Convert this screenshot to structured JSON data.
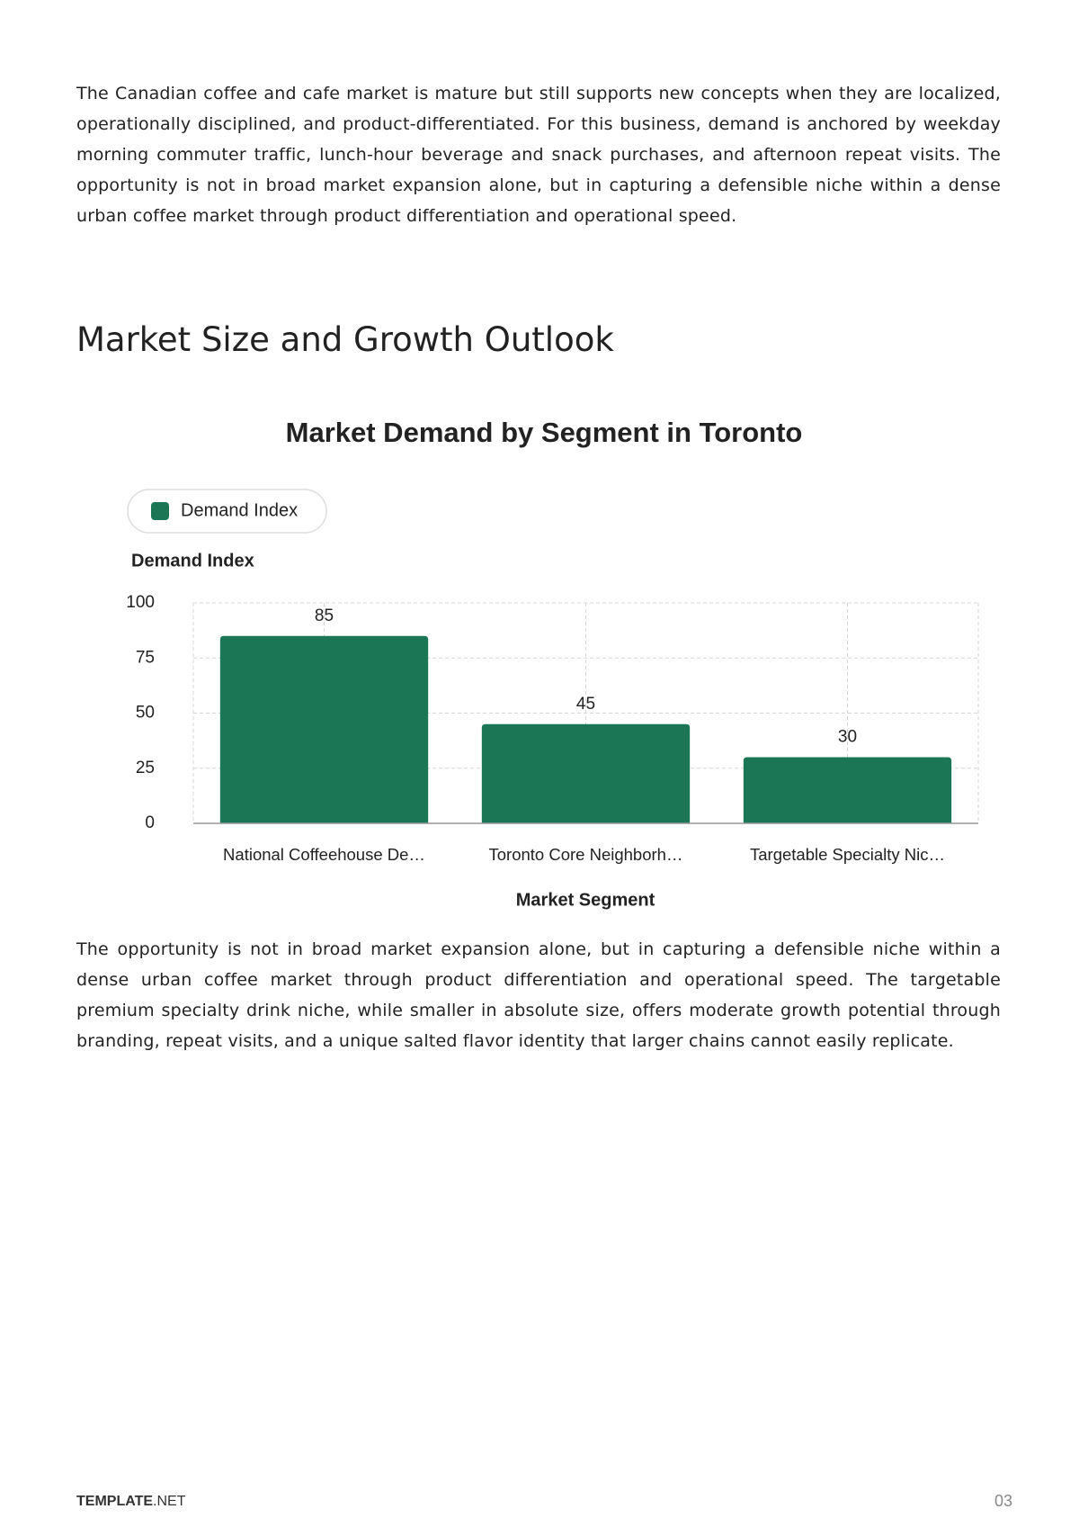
{
  "paragraphs": [
    "The Canadian coffee and cafe market is mature but still supports new concepts when they are localized, operationally disciplined, and product-differentiated. For this business, demand is anchored by weekday morning commuter traffic, lunch-hour beverage and snack purchases, and afternoon repeat visits. The opportunity is not in broad market expansion alone, but in capturing a defensible niche within a dense urban coffee market through product differentiation and operational speed.",
    "The opportunity is not in broad market expansion alone, but in capturing a defensible niche within a dense urban coffee market through product differentiation and operational speed. The targetable premium specialty drink niche, while smaller in absolute size, offers moderate growth potential through branding, repeat visits, and a unique salted flavor identity that larger chains cannot easily replicate."
  ],
  "heading": "Market Size and Growth Outlook",
  "chart_data": {
    "type": "bar",
    "title": "Market Demand by Segment in Toronto",
    "x_label": "Market Segment",
    "y_label": "Demand Index",
    "categories": [
      "National Coffeehouse De…",
      "Toronto Core Neighborh…",
      "Targetable Specialty Nic…"
    ],
    "series": [
      {
        "name": "Demand Index",
        "color": "#1b7655",
        "values": [
          85,
          45,
          30
        ]
      }
    ],
    "ylim": [
      0,
      100
    ],
    "yticks": [
      0,
      25,
      50,
      75,
      100
    ],
    "grid": true,
    "legend": "top-left"
  },
  "footer": {
    "brand_bold": "TEMPLATE",
    "brand_rest": ".NET",
    "page": "03"
  }
}
